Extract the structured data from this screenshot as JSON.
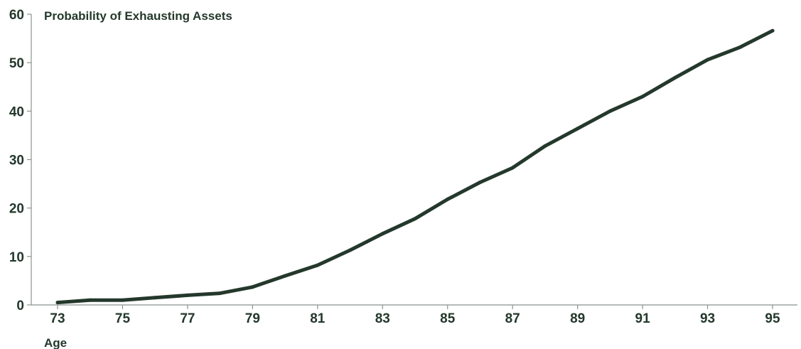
{
  "chart_data": {
    "type": "line",
    "title": "",
    "ylabel": "Probability of Exhausting Assets",
    "xlabel": "Age",
    "ylim": [
      0,
      60
    ],
    "xlim": [
      73,
      95
    ],
    "yticks": [
      0,
      10,
      20,
      30,
      40,
      50,
      60
    ],
    "xticks": [
      73,
      75,
      77,
      79,
      81,
      83,
      85,
      87,
      89,
      91,
      93,
      95
    ],
    "grid": false,
    "legend": "none",
    "series": [
      {
        "color": "#24382c",
        "x": [
          73,
          74,
          75,
          76,
          77,
          78,
          79,
          80,
          81,
          82,
          83,
          84,
          85,
          86,
          87,
          88,
          89,
          90,
          91,
          92,
          93,
          94,
          95
        ],
        "values": [
          0.5,
          1.0,
          1.0,
          1.5,
          2.0,
          2.4,
          3.7,
          6.0,
          8.2,
          11.3,
          14.7,
          17.8,
          21.8,
          25.3,
          28.3,
          32.8,
          36.4,
          40.0,
          43.0,
          46.9,
          50.6,
          53.2,
          56.6
        ]
      }
    ]
  },
  "colors": {
    "axis": "#8a948e",
    "text": "#24382c",
    "line": "#24382c"
  }
}
